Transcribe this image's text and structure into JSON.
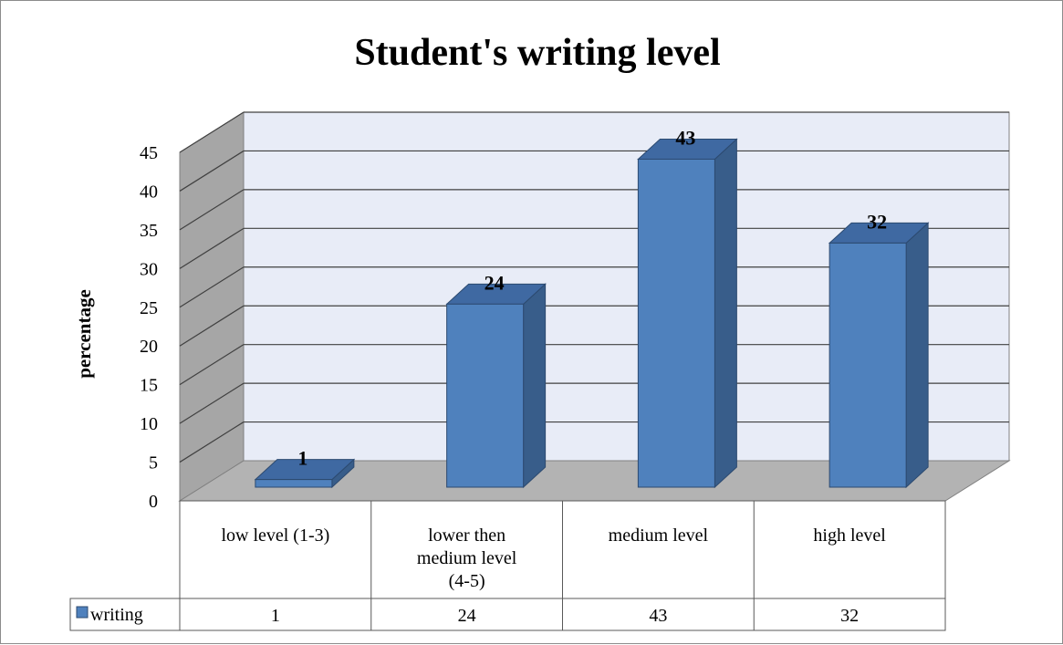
{
  "chart_data": {
    "type": "bar",
    "title": "Student's writing level",
    "ylabel": "percentage",
    "xlabel": "",
    "ylim": [
      0,
      45
    ],
    "yticks": [
      0,
      5,
      10,
      15,
      20,
      25,
      30,
      35,
      40,
      45
    ],
    "categories": [
      "low level (1-3)",
      "lower then medium level (4-5)",
      "medium level",
      "high level"
    ],
    "category_lines": [
      [
        "low level (1-3)"
      ],
      [
        "lower then",
        "medium level",
        "(4-5)"
      ],
      [
        "medium level"
      ],
      [
        "high level"
      ]
    ],
    "series": [
      {
        "name": "writing",
        "values": [
          1,
          24,
          43,
          32
        ],
        "color": "#4f81bd"
      }
    ],
    "data_table": {
      "legend_label": "writing",
      "cells": [
        "1",
        "24",
        "43",
        "32"
      ]
    },
    "style": "3d-column",
    "grid": true,
    "colors": {
      "bar_front": "#4f81bd",
      "bar_side": "#385d8a",
      "bar_top": "#3f69a2",
      "back_wall": "#e8ecf7",
      "side_wall": "#a6a6a6",
      "floor": "#b3b3b3",
      "grid": "#404040"
    }
  }
}
